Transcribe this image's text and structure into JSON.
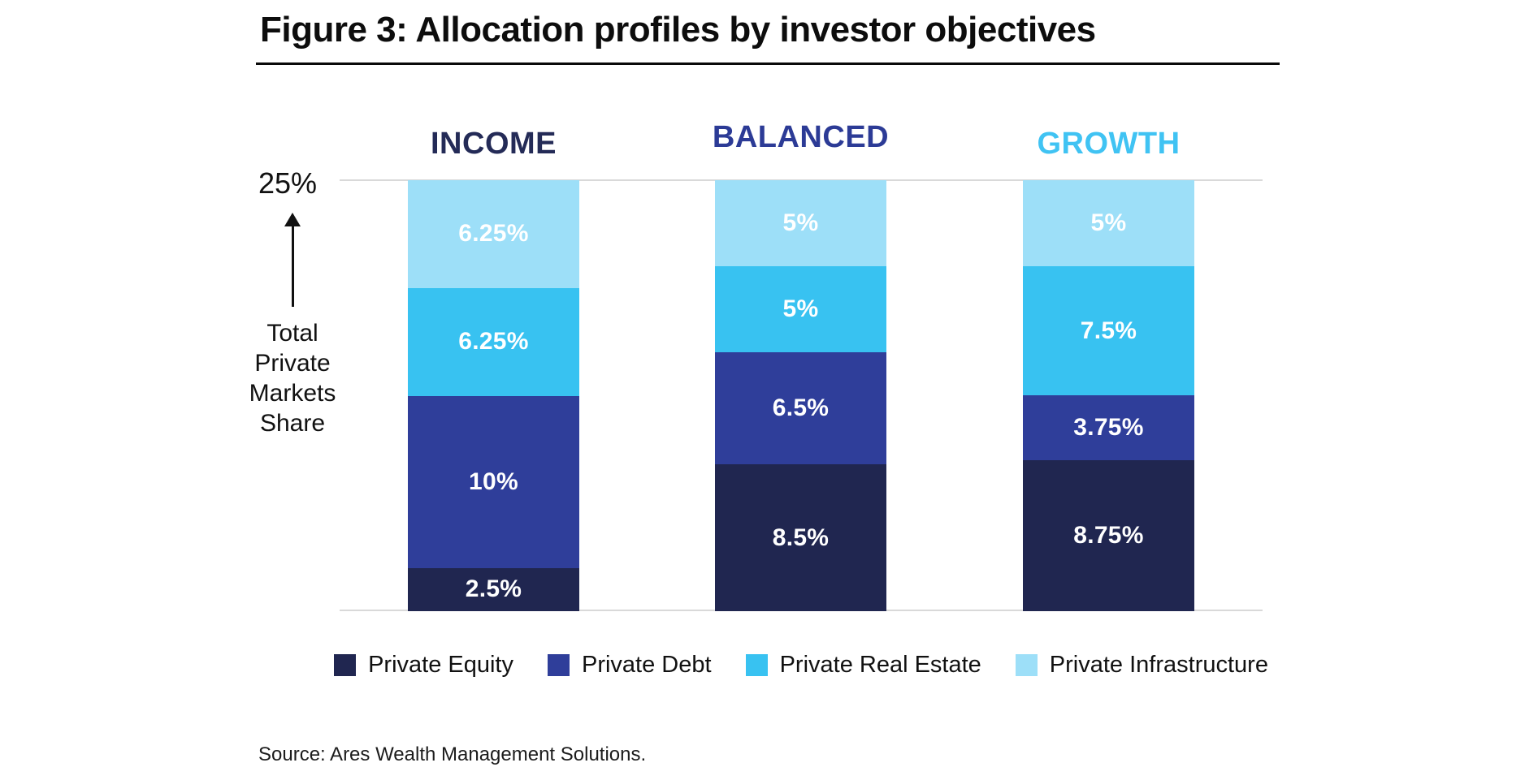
{
  "figure": {
    "title": "Figure 3: Allocation profiles by investor objectives",
    "source": "Source: Ares Wealth Management Solutions."
  },
  "axis": {
    "top_tick": "25%",
    "side_label": "Total Private Markets Share"
  },
  "chart_data": {
    "type": "bar",
    "stacked": true,
    "title": "Figure 3: Allocation profiles by investor objectives",
    "ylabel": "Total Private Markets Share",
    "ylim": [
      0,
      25
    ],
    "y_tick_labels": [
      "25%"
    ],
    "grid": "single top and bottom gridlines only",
    "legend_position": "bottom",
    "categories": [
      {
        "label": "INCOME",
        "color": "#242b57"
      },
      {
        "label": "BALANCED",
        "color": "#2c3b96"
      },
      {
        "label": "GROWTH",
        "color": "#40c3f3"
      }
    ],
    "series": [
      {
        "name": "Private Equity",
        "color": "#202650",
        "values": [
          2.5,
          8.5,
          8.75
        ],
        "labels": [
          "2.5%",
          "8.5%",
          "8.75%"
        ]
      },
      {
        "name": "Private Debt",
        "color": "#2f3e9a",
        "values": [
          10,
          6.5,
          3.75
        ],
        "labels": [
          "10%",
          "6.5%",
          "3.75%"
        ]
      },
      {
        "name": "Private Real Estate",
        "color": "#38c2f1",
        "values": [
          6.25,
          5,
          7.5
        ],
        "labels": [
          "6.25%",
          "5%",
          "7.5%"
        ]
      },
      {
        "name": "Private Infrastructure",
        "color": "#9ddff8",
        "values": [
          6.25,
          5,
          5
        ],
        "labels": [
          "6.25%",
          "5%",
          "5%"
        ]
      }
    ],
    "stack_order_top_to_bottom": [
      "Private Infrastructure",
      "Private Real Estate",
      "Private Debt",
      "Private Equity"
    ],
    "legend": [
      "Private Equity",
      "Private Debt",
      "Private Real Estate",
      "Private Infrastructure"
    ]
  }
}
